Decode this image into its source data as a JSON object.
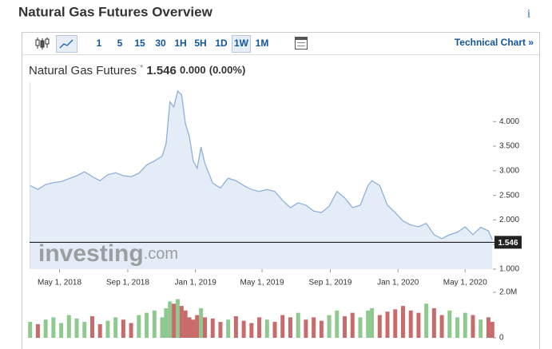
{
  "header": {
    "title": "Natural Gas Futures Overview",
    "info": "i"
  },
  "toolbar": {
    "intervals": [
      "1",
      "5",
      "15",
      "30",
      "1H",
      "5H",
      "1D",
      "1W",
      "1M"
    ],
    "active": "1W",
    "link": "Technical Chart »"
  },
  "quote": {
    "name": "Natural Gas Futures",
    "marker": "*",
    "price": "1.546",
    "change": "0.000",
    "change_pct": "(0.00%)"
  },
  "watermark": {
    "brand": "investing",
    "suffix": ".com"
  },
  "chart_data": [
    {
      "type": "area",
      "color": "#8fb0d8",
      "fill": "#e4edf7",
      "x": [
        "2018-03-09",
        "2018-03-23",
        "2018-04-06",
        "2018-04-20",
        "2018-05-04",
        "2018-05-18",
        "2018-06-01",
        "2018-06-15",
        "2018-06-29",
        "2018-07-13",
        "2018-07-27",
        "2018-08-10",
        "2018-08-24",
        "2018-09-07",
        "2018-09-21",
        "2018-10-05",
        "2018-10-19",
        "2018-11-02",
        "2018-11-09",
        "2018-11-16",
        "2018-11-23",
        "2018-11-30",
        "2018-12-07",
        "2018-12-14",
        "2018-12-21",
        "2018-12-28",
        "2019-01-04",
        "2019-01-11",
        "2019-01-18",
        "2019-02-01",
        "2019-02-15",
        "2019-03-01",
        "2019-03-15",
        "2019-03-29",
        "2019-04-12",
        "2019-04-26",
        "2019-05-10",
        "2019-05-24",
        "2019-06-07",
        "2019-06-21",
        "2019-07-05",
        "2019-07-19",
        "2019-08-02",
        "2019-08-16",
        "2019-08-30",
        "2019-09-13",
        "2019-09-27",
        "2019-10-11",
        "2019-10-25",
        "2019-11-08",
        "2019-11-15",
        "2019-11-29",
        "2019-12-13",
        "2019-12-27",
        "2020-01-10",
        "2020-01-24",
        "2020-02-07",
        "2020-02-21",
        "2020-03-06",
        "2020-03-20",
        "2020-04-03",
        "2020-04-17",
        "2020-05-01",
        "2020-05-15",
        "2020-05-29",
        "2020-06-12",
        "2020-06-19"
      ],
      "values": [
        2.7,
        2.62,
        2.72,
        2.76,
        2.78,
        2.84,
        2.9,
        2.98,
        2.88,
        2.8,
        2.92,
        2.96,
        2.9,
        2.88,
        2.95,
        3.12,
        3.2,
        3.3,
        3.55,
        4.4,
        4.3,
        4.62,
        4.55,
        3.95,
        3.7,
        3.2,
        3.05,
        3.48,
        3.15,
        2.75,
        2.65,
        2.85,
        2.8,
        2.7,
        2.62,
        2.58,
        2.62,
        2.58,
        2.4,
        2.25,
        2.35,
        2.3,
        2.18,
        2.15,
        2.28,
        2.58,
        2.45,
        2.25,
        2.3,
        2.7,
        2.8,
        2.7,
        2.3,
        2.15,
        1.98,
        1.9,
        1.86,
        1.93,
        1.7,
        1.62,
        1.7,
        1.75,
        1.86,
        1.7,
        1.85,
        1.78,
        1.6
      ],
      "current": 1.546,
      "xlim": [
        "2018-03-08",
        "2020-06-20"
      ],
      "xticks": [
        {
          "value": "2018-05-01",
          "label": "May 1, 2018"
        },
        {
          "value": "2018-09-01",
          "label": "Sep 1, 2018"
        },
        {
          "value": "2019-01-01",
          "label": "Jan 1, 2019"
        },
        {
          "value": "2019-05-01",
          "label": "May 1, 2019"
        },
        {
          "value": "2019-09-01",
          "label": "Sep 1, 2019"
        },
        {
          "value": "2020-01-01",
          "label": "Jan 1, 2020"
        },
        {
          "value": "2020-05-01",
          "label": "May 1, 2020"
        }
      ],
      "ylim": [
        1.0,
        4.8
      ],
      "yticks": [
        {
          "value": 1,
          "label": "1.000"
        },
        {
          "value": 1.5,
          "label": "1.500"
        },
        {
          "value": 2,
          "label": "2.000"
        },
        {
          "value": 2.5,
          "label": "2.500"
        },
        {
          "value": 3,
          "label": "3.000"
        },
        {
          "value": 3.5,
          "label": "3.500"
        },
        {
          "value": 4,
          "label": "4.000"
        }
      ]
    },
    {
      "type": "bar",
      "up_color": "#8fc98f",
      "down_color": "#c96b6b",
      "values": [
        700000,
        600000,
        800000,
        900000,
        650000,
        1000000,
        850000,
        700000,
        950000,
        600000,
        750000,
        900000,
        800000,
        650000,
        1000000,
        1100000,
        1200000,
        900000,
        1300000,
        1600000,
        1500000,
        1700000,
        1400000,
        1200000,
        900000,
        800000,
        1000000,
        1300000,
        900000,
        850000,
        700000,
        800000,
        950000,
        750000,
        650000,
        900000,
        800000,
        700000,
        1000000,
        900000,
        1100000,
        800000,
        900000,
        750000,
        1000000,
        1200000,
        950000,
        1100000,
        900000,
        1200000,
        1300000,
        1000000,
        1150000,
        1250000,
        1400000,
        1200000,
        1100000,
        1500000,
        1300000,
        1000000,
        1200000,
        900000,
        1100000,
        1000000,
        800000,
        900000,
        700000
      ],
      "ylim": [
        0,
        2000000
      ],
      "yticks": [
        0,
        {
          "value": 2000000,
          "label": "2.0M"
        }
      ]
    }
  ]
}
